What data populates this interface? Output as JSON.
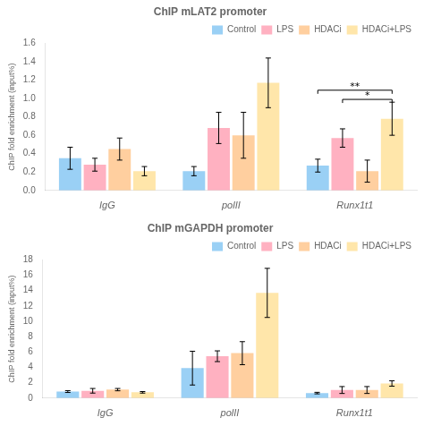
{
  "chart_data": [
    {
      "type": "bar",
      "title": "ChIP mLAT2 promoter",
      "ylabel": "ChIP fold enrichment (input%)",
      "categories": [
        "IgG",
        "polII",
        "Runx1t1"
      ],
      "series": [
        {
          "name": "Control",
          "values": [
            0.35,
            0.21,
            0.27
          ],
          "errors": [
            0.12,
            0.05,
            0.07
          ]
        },
        {
          "name": "LPS",
          "values": [
            0.28,
            0.68,
            0.57
          ],
          "errors": [
            0.07,
            0.17,
            0.1
          ]
        },
        {
          "name": "HDACi",
          "values": [
            0.45,
            0.6,
            0.21
          ],
          "errors": [
            0.12,
            0.25,
            0.12
          ]
        },
        {
          "name": "HDACi+LPS",
          "values": [
            0.21,
            1.17,
            0.78
          ],
          "errors": [
            0.05,
            0.27,
            0.18
          ]
        }
      ],
      "ylim": [
        0,
        1.6
      ],
      "yticks": [
        {
          "value": 0,
          "label": "0.0"
        },
        0.2,
        0.4,
        0.6,
        0.8,
        {
          "value": 1,
          "label": "1.0"
        },
        1.2,
        1.4,
        1.6
      ],
      "grid": false,
      "legend": "upper right",
      "annotations": [
        {
          "text": "**",
          "category": "Runx1t1",
          "from": "Control",
          "to": "HDACi+LPS",
          "y": 1.09
        },
        {
          "text": "*",
          "category": "Runx1t1",
          "from": "LPS",
          "to": "HDACi+LPS",
          "y": 0.99
        }
      ]
    },
    {
      "type": "bar",
      "title": "ChIP mGAPDH promoter",
      "ylabel": "ChIP fold enrichment (input%)",
      "categories": [
        "IgG",
        "polII",
        "Runx1t1"
      ],
      "series": [
        {
          "name": "Control",
          "values": [
            0.85,
            3.9,
            0.65
          ],
          "errors": [
            0.12,
            2.2,
            0.1
          ]
        },
        {
          "name": "LPS",
          "values": [
            0.95,
            5.45,
            1.05
          ],
          "errors": [
            0.3,
            0.7,
            0.45
          ]
        },
        {
          "name": "HDACi",
          "values": [
            1.1,
            5.85,
            1.05
          ],
          "errors": [
            0.15,
            1.5,
            0.45
          ]
        },
        {
          "name": "HDACi+LPS",
          "values": [
            0.75,
            13.7,
            1.9
          ],
          "errors": [
            0.1,
            3.2,
            0.35
          ]
        }
      ],
      "ylim": [
        0,
        18
      ],
      "yticks": [
        0,
        2,
        4,
        6,
        8,
        10,
        12,
        14,
        16,
        18
      ],
      "grid": false,
      "legend": "upper right"
    }
  ]
}
